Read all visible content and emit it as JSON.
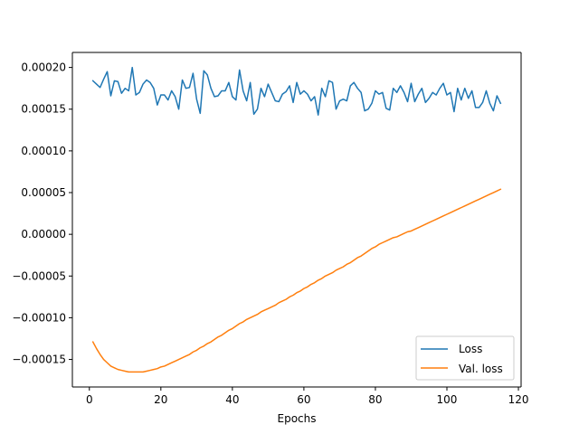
{
  "chart_data": {
    "type": "line",
    "title": "",
    "xlabel": "Epochs",
    "ylabel": "",
    "xlim": [
      -4.75,
      120.75
    ],
    "ylim": [
      -0.000183,
      0.000218
    ],
    "xticks": [
      0,
      20,
      40,
      60,
      80,
      100,
      120
    ],
    "yticks": [
      -0.00015,
      -0.0001,
      -5e-05,
      0.0,
      5e-05,
      0.0001,
      0.00015,
      0.0002
    ],
    "xtick_labels": [
      "0",
      "20",
      "40",
      "60",
      "80",
      "100",
      "120"
    ],
    "ytick_labels": [
      "−0.00015",
      "−0.00010",
      "−0.00005",
      "0.00000",
      "0.00005",
      "0.00010",
      "0.00015",
      "0.00020"
    ],
    "grid": false,
    "legend_position": "lower-right",
    "x": [
      1,
      2,
      3,
      4,
      5,
      6,
      7,
      8,
      9,
      10,
      11,
      12,
      13,
      14,
      15,
      16,
      17,
      18,
      19,
      20,
      21,
      22,
      23,
      24,
      25,
      26,
      27,
      28,
      29,
      30,
      31,
      32,
      33,
      34,
      35,
      36,
      37,
      38,
      39,
      40,
      41,
      42,
      43,
      44,
      45,
      46,
      47,
      48,
      49,
      50,
      51,
      52,
      53,
      54,
      55,
      56,
      57,
      58,
      59,
      60,
      61,
      62,
      63,
      64,
      65,
      66,
      67,
      68,
      69,
      70,
      71,
      72,
      73,
      74,
      75,
      76,
      77,
      78,
      79,
      80,
      81,
      82,
      83,
      84,
      85,
      86,
      87,
      88,
      89,
      90,
      91,
      92,
      93,
      94,
      95,
      96,
      97,
      98,
      99,
      100,
      101,
      102,
      103,
      104,
      105,
      106,
      107,
      108,
      109,
      110,
      111,
      112,
      113,
      114,
      115
    ],
    "series": [
      {
        "name": "Loss",
        "color": "#1f77b4",
        "values": [
          0.000184,
          0.00018,
          0.000176,
          0.000186,
          0.000195,
          0.000166,
          0.000184,
          0.000183,
          0.000169,
          0.000175,
          0.000172,
          0.0002,
          0.000167,
          0.00017,
          0.00018,
          0.000185,
          0.000182,
          0.000175,
          0.000155,
          0.000167,
          0.000167,
          0.000161,
          0.000172,
          0.000165,
          0.00015,
          0.000185,
          0.000175,
          0.000176,
          0.000193,
          0.000162,
          0.000145,
          0.000196,
          0.000191,
          0.000175,
          0.000165,
          0.000166,
          0.000172,
          0.000172,
          0.000182,
          0.000165,
          0.000161,
          0.000197,
          0.000172,
          0.00016,
          0.000182,
          0.000144,
          0.00015,
          0.000175,
          0.000165,
          0.00018,
          0.00017,
          0.00016,
          0.000159,
          0.000168,
          0.000171,
          0.000178,
          0.000158,
          0.000182,
          0.000168,
          0.000172,
          0.000168,
          0.00016,
          0.000165,
          0.000143,
          0.000175,
          0.000165,
          0.000184,
          0.000182,
          0.00015,
          0.00016,
          0.000162,
          0.00016,
          0.000178,
          0.000182,
          0.000175,
          0.00017,
          0.000148,
          0.00015,
          0.000157,
          0.000172,
          0.000168,
          0.00017,
          0.000151,
          0.000149,
          0.000175,
          0.00017,
          0.000178,
          0.00017,
          0.000159,
          0.000181,
          0.000159,
          0.000168,
          0.000175,
          0.000158,
          0.000163,
          0.00017,
          0.000167,
          0.000175,
          0.000181,
          0.000167,
          0.00017,
          0.000147,
          0.000175,
          0.000161,
          0.000175,
          0.000163,
          0.000172,
          0.000152,
          0.000152,
          0.000158,
          0.000172,
          0.000157,
          0.000148,
          0.000166,
          0.000157
        ]
      },
      {
        "name": "Val. loss",
        "color": "#ff7f0e",
        "values": [
          -0.000129,
          -0.000137,
          -0.000144,
          -0.00015,
          -0.000154,
          -0.000158,
          -0.00016,
          -0.000162,
          -0.000163,
          -0.000164,
          -0.000165,
          -0.000165,
          -0.000165,
          -0.000165,
          -0.000165,
          -0.000164,
          -0.000163,
          -0.000162,
          -0.000161,
          -0.000159,
          -0.000158,
          -0.000156,
          -0.000154,
          -0.000152,
          -0.00015,
          -0.000148,
          -0.000146,
          -0.000144,
          -0.000141,
          -0.000139,
          -0.000136,
          -0.000134,
          -0.000131,
          -0.000129,
          -0.000126,
          -0.000123,
          -0.000121,
          -0.000118,
          -0.000115,
          -0.000113,
          -0.00011,
          -0.000107,
          -0.000105,
          -0.000102,
          -0.0001,
          -9.8e-05,
          -9.6e-05,
          -9.3e-05,
          -9.1e-05,
          -8.9e-05,
          -8.7e-05,
          -8.5e-05,
          -8.2e-05,
          -8e-05,
          -7.8e-05,
          -7.5e-05,
          -7.3e-05,
          -7e-05,
          -6.8e-05,
          -6.5e-05,
          -6.3e-05,
          -6e-05,
          -5.8e-05,
          -5.5e-05,
          -5.3e-05,
          -5e-05,
          -4.8e-05,
          -4.6e-05,
          -4.3e-05,
          -4.1e-05,
          -3.9e-05,
          -3.6e-05,
          -3.4e-05,
          -3.1e-05,
          -2.8e-05,
          -2.6e-05,
          -2.3e-05,
          -2e-05,
          -1.7e-05,
          -1.5e-05,
          -1.2e-05,
          -1e-05,
          -8e-06,
          -6e-06,
          -4e-06,
          -3e-06,
          -1e-06,
          1e-06,
          3e-06,
          4e-06,
          6e-06,
          8e-06,
          1e-05,
          1.2e-05,
          1.4e-05,
          1.6e-05,
          1.8e-05,
          2e-05,
          2.2e-05,
          2.4e-05,
          2.6e-05,
          2.8e-05,
          3e-05,
          3.2e-05,
          3.4e-05,
          3.6e-05,
          3.8e-05,
          4e-05,
          4.2e-05,
          4.4e-05,
          4.6e-05,
          4.8e-05,
          5e-05,
          5.2e-05,
          5.4e-05
        ]
      }
    ]
  }
}
